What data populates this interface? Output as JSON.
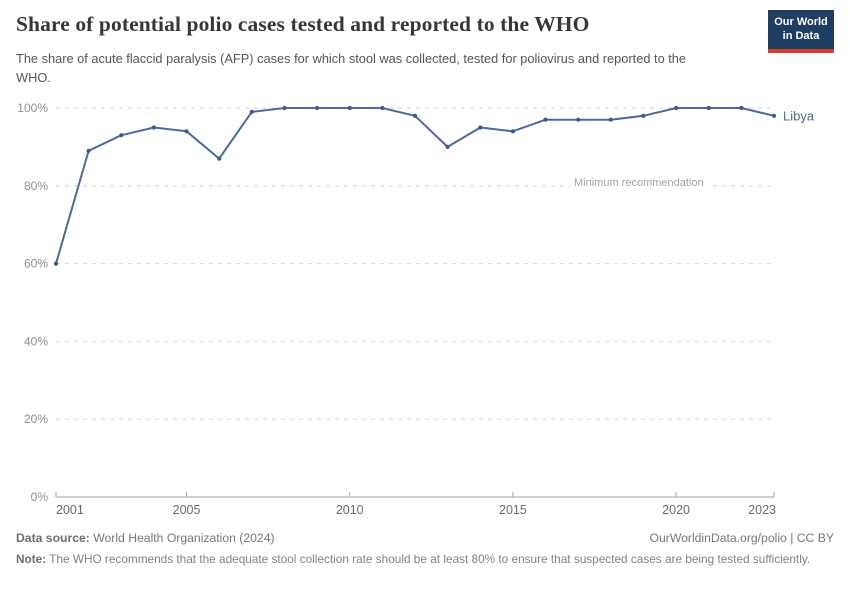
{
  "header": {
    "title": "Share of potential polio cases tested and reported to the WHO",
    "subtitle": "The share of acute flaccid paralysis (AFP) cases for which stool was collected, tested for poliovirus and reported to the WHO.",
    "logo": {
      "line1": "Our World",
      "line2": "in Data",
      "bg_color": "#1d3d63",
      "bar_color": "#d73c32"
    }
  },
  "chart_data": {
    "type": "line",
    "title": "Share of potential polio cases tested and reported to the WHO",
    "xlabel": "",
    "ylabel": "",
    "x": [
      2001,
      2002,
      2003,
      2004,
      2005,
      2006,
      2007,
      2008,
      2009,
      2010,
      2011,
      2012,
      2013,
      2014,
      2015,
      2016,
      2017,
      2018,
      2019,
      2020,
      2021,
      2022,
      2023
    ],
    "series": [
      {
        "name": "Libya",
        "color": "#4c6a9c",
        "marker_color": "#3d5a8f",
        "values": [
          60,
          89,
          93,
          95,
          94,
          87,
          99,
          100,
          100,
          100,
          100,
          98,
          90,
          95,
          94,
          97,
          97,
          97,
          98,
          100,
          100,
          100,
          98
        ]
      }
    ],
    "xlim": [
      2001,
      2023
    ],
    "ylim": [
      0,
      100
    ],
    "xticks": [
      2001,
      2005,
      2010,
      2015,
      2020,
      2023
    ],
    "yticks": [
      0,
      20,
      40,
      60,
      80,
      100
    ],
    "ytick_suffix": "%",
    "grid": "horizontal-dashed",
    "legend_position": "end-of-line-label",
    "annotation": {
      "label": "Minimum recommendation",
      "y": 80
    },
    "colors": {
      "grid": "#d6d6d6",
      "axis": "#a5a5a5",
      "ytick_text": "#8f8f8f",
      "xtick_text": "#6b6b6b"
    }
  },
  "footer": {
    "datasource_label": "Data source:",
    "datasource_value": " World Health Organization (2024)",
    "credit": "OurWorldinData.org/polio | CC BY",
    "note_label": "Note:",
    "note_value": " The WHO recommends that the adequate stool collection rate should be at least 80% to ensure that suspected cases are being tested sufficiently."
  }
}
